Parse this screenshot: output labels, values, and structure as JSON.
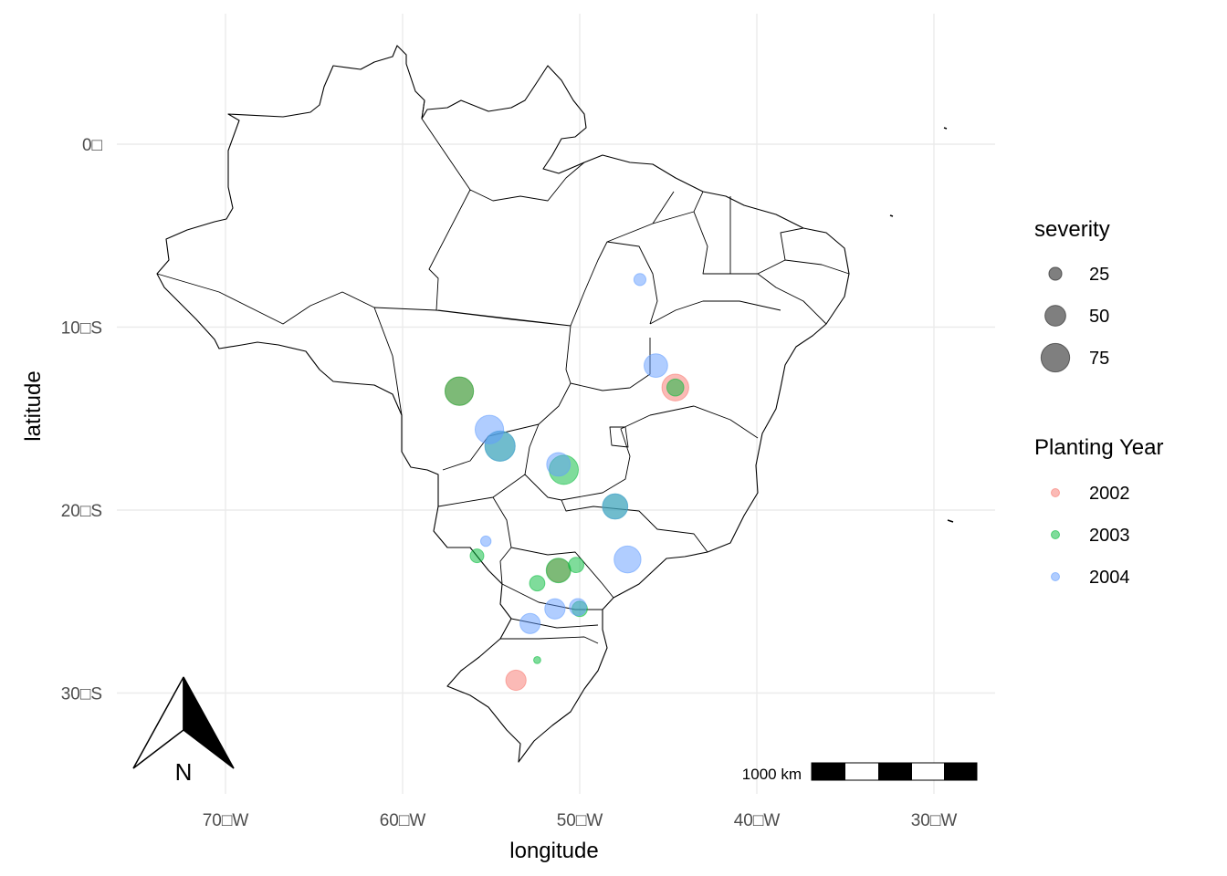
{
  "chart_data": {
    "type": "scatter",
    "map": "Brazil",
    "xlabel": "longitude",
    "ylabel": "latitude",
    "xlim": [
      -75.5,
      -27
    ],
    "ylim": [
      -34,
      6
    ],
    "x_ticks": [
      {
        "value": -70,
        "label": "70□W"
      },
      {
        "value": -60,
        "label": "60□W"
      },
      {
        "value": -50,
        "label": "50□W"
      },
      {
        "value": -40,
        "label": "40□W"
      },
      {
        "value": -30,
        "label": "30□W"
      }
    ],
    "y_ticks": [
      {
        "value": 0,
        "label": "0□"
      },
      {
        "value": -10,
        "label": "10□S"
      },
      {
        "value": -20,
        "label": "20□S"
      },
      {
        "value": -30,
        "label": "30□S"
      }
    ],
    "grid": true,
    "size_legend": {
      "title": "severity",
      "entries": [
        {
          "value": 25,
          "label": "25"
        },
        {
          "value": 50,
          "label": "50"
        },
        {
          "value": 75,
          "label": "75"
        }
      ]
    },
    "color_legend": {
      "title": "Planting Year",
      "entries": [
        {
          "label": "2002",
          "color": "#F8766D"
        },
        {
          "label": "2003",
          "color": "#00BA38"
        },
        {
          "label": "2004",
          "color": "#619CFF"
        }
      ]
    },
    "legend_position": "right",
    "series": [
      {
        "name": "2002",
        "color": "#F8766D",
        "points": [
          {
            "lon": -56.8,
            "lat": -13.5,
            "severity": 70
          },
          {
            "lon": -44.6,
            "lat": -13.3,
            "severity": 65
          },
          {
            "lon": -53.6,
            "lat": -29.3,
            "severity": 45
          },
          {
            "lon": -51.2,
            "lat": -23.3,
            "severity": 55
          }
        ]
      },
      {
        "name": "2003",
        "color": "#00BA38",
        "points": [
          {
            "lon": -56.8,
            "lat": -13.5,
            "severity": 70
          },
          {
            "lon": -44.6,
            "lat": -13.3,
            "severity": 35
          },
          {
            "lon": -54.5,
            "lat": -16.5,
            "severity": 75
          },
          {
            "lon": -50.9,
            "lat": -17.8,
            "severity": 72
          },
          {
            "lon": -48.0,
            "lat": -19.8,
            "severity": 60
          },
          {
            "lon": -55.8,
            "lat": -22.5,
            "severity": 25
          },
          {
            "lon": -51.2,
            "lat": -23.3,
            "severity": 58
          },
          {
            "lon": -52.4,
            "lat": -24.0,
            "severity": 30
          },
          {
            "lon": -50.2,
            "lat": -23.0,
            "severity": 30
          },
          {
            "lon": -50.0,
            "lat": -25.4,
            "severity": 30
          },
          {
            "lon": -52.4,
            "lat": -28.2,
            "severity": 5
          }
        ]
      },
      {
        "name": "2004",
        "color": "#619CFF",
        "points": [
          {
            "lon": -46.6,
            "lat": -7.4,
            "severity": 20
          },
          {
            "lon": -45.7,
            "lat": -12.1,
            "severity": 55
          },
          {
            "lon": -55.1,
            "lat": -15.6,
            "severity": 70
          },
          {
            "lon": -54.5,
            "lat": -16.5,
            "severity": 75
          },
          {
            "lon": -51.2,
            "lat": -17.5,
            "severity": 55
          },
          {
            "lon": -48.0,
            "lat": -19.8,
            "severity": 60
          },
          {
            "lon": -47.3,
            "lat": -22.7,
            "severity": 65
          },
          {
            "lon": -55.3,
            "lat": -21.7,
            "severity": 15
          },
          {
            "lon": -51.4,
            "lat": -25.4,
            "severity": 45
          },
          {
            "lon": -50.1,
            "lat": -25.3,
            "severity": 35
          },
          {
            "lon": -52.8,
            "lat": -26.2,
            "severity": 45
          }
        ]
      }
    ],
    "scale_bar": {
      "label": "1000 km"
    },
    "north_arrow": {
      "label": "N"
    }
  }
}
